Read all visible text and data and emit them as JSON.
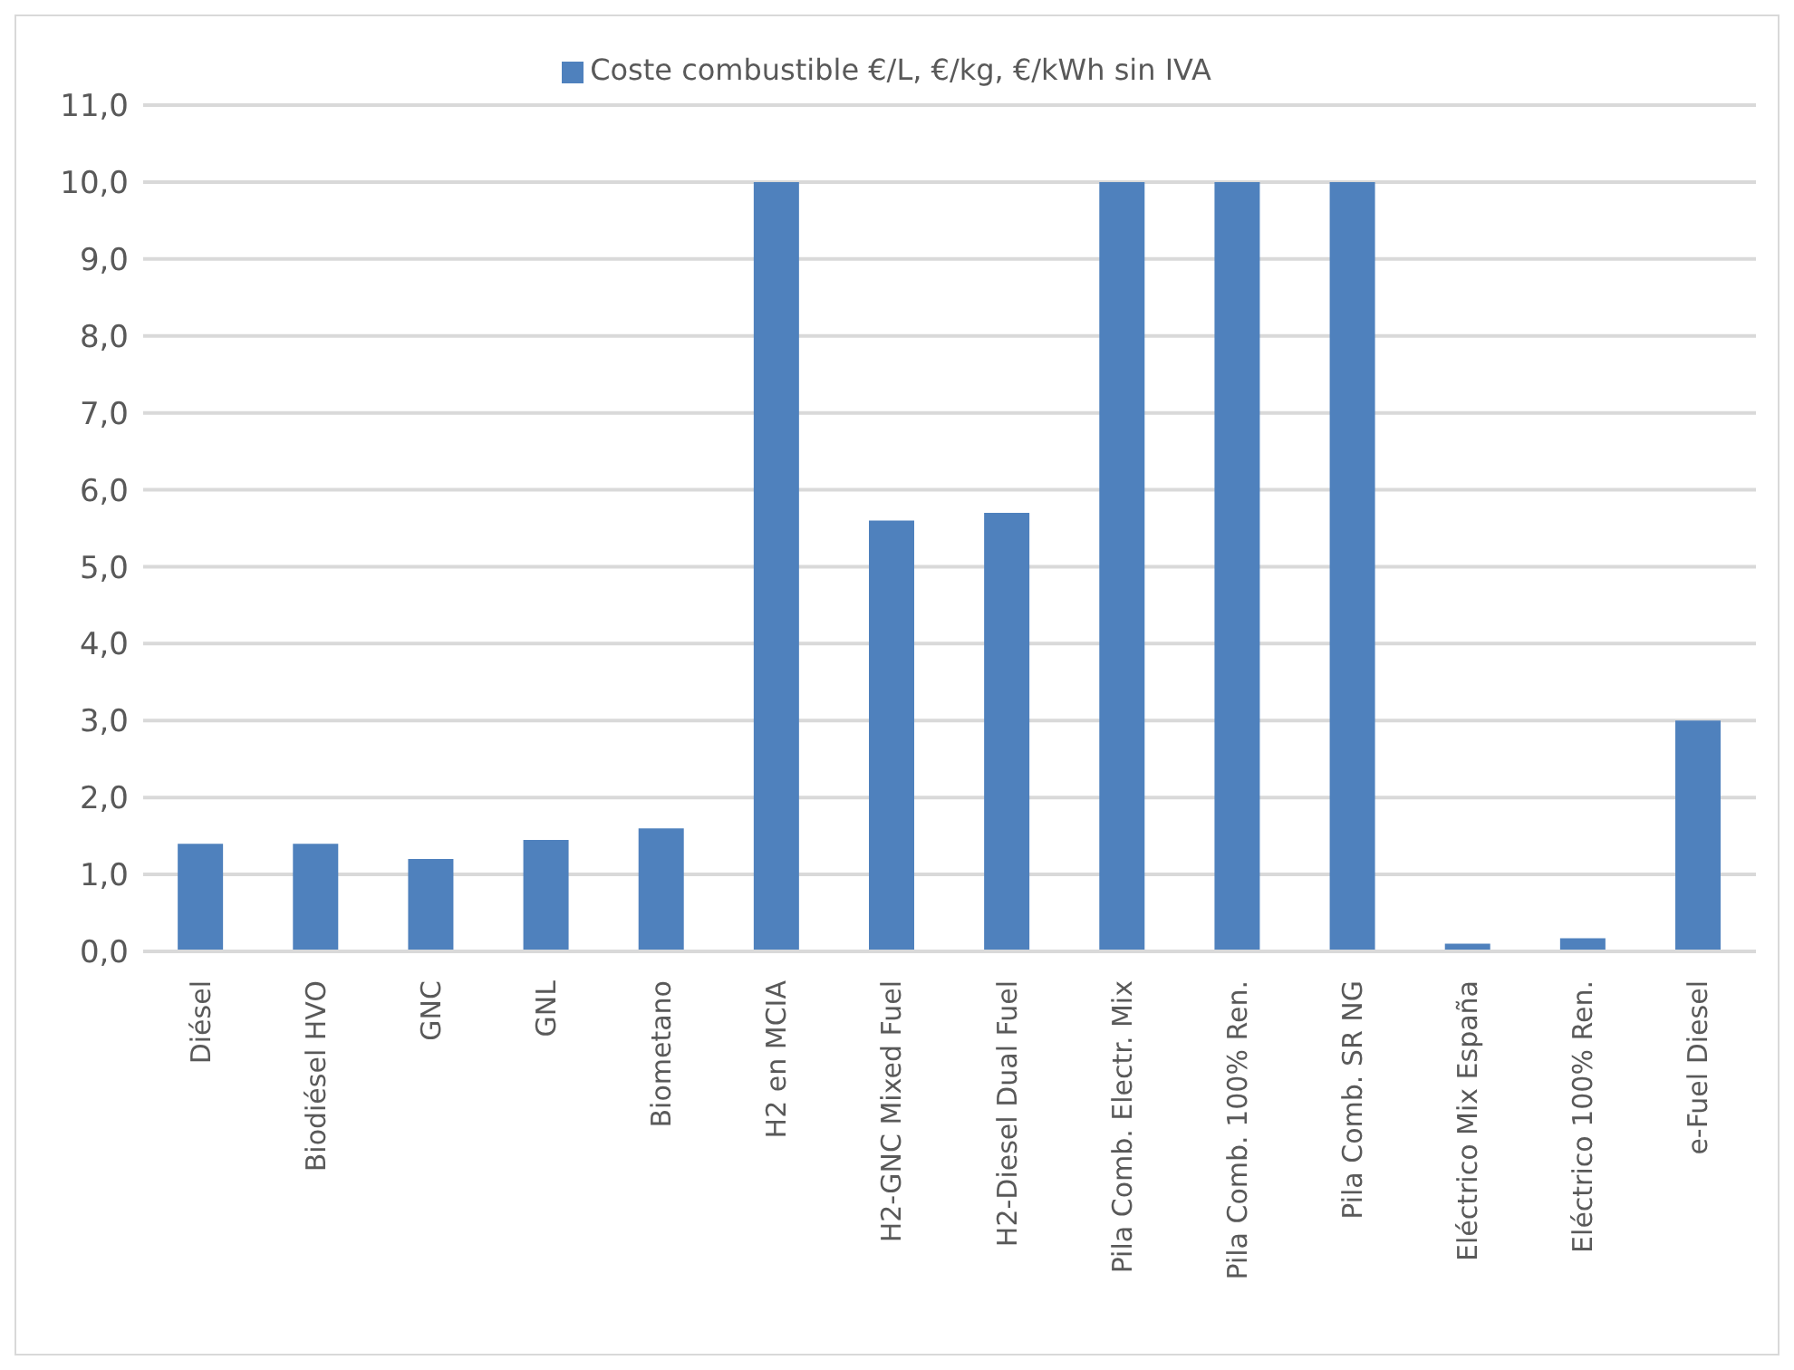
{
  "chart_data": {
    "type": "bar",
    "categories": [
      "Diésel",
      "Biodiésel HVO",
      "GNC",
      "GNL",
      "Biometano",
      "H2 en MCIA",
      "H2-GNC Mixed Fuel",
      "H2-Diesel Dual Fuel",
      "Pila Comb. Electr. Mix",
      "Pila Comb. 100% Ren.",
      "Pila Comb. SR NG",
      "Eléctrico Mix España",
      "Eléctrico 100% Ren.",
      "e-Fuel Diesel"
    ],
    "series": [
      {
        "name": "Coste combustible €/L, €/kg, €/kWh sin IVA",
        "color": "#4f81bd",
        "values": [
          1.4,
          1.4,
          1.2,
          1.45,
          1.6,
          10,
          5.6,
          5.7,
          10,
          10,
          10,
          0.1,
          0.17,
          3.0
        ]
      }
    ],
    "ylim": [
      0,
      11
    ],
    "yticks": [
      {
        "value": 0,
        "label": "0,0"
      },
      {
        "value": 1,
        "label": "1,0"
      },
      {
        "value": 2,
        "label": "2,0"
      },
      {
        "value": 3,
        "label": "3,0"
      },
      {
        "value": 4,
        "label": "4,0"
      },
      {
        "value": 5,
        "label": "5,0"
      },
      {
        "value": 6,
        "label": "6,0"
      },
      {
        "value": 7,
        "label": "7,0"
      },
      {
        "value": 8,
        "label": "8,0"
      },
      {
        "value": 9,
        "label": "9,0"
      },
      {
        "value": 10,
        "label": "10,0"
      },
      {
        "value": 11,
        "label": "11,0"
      }
    ],
    "grid": "y",
    "legend": "top"
  }
}
